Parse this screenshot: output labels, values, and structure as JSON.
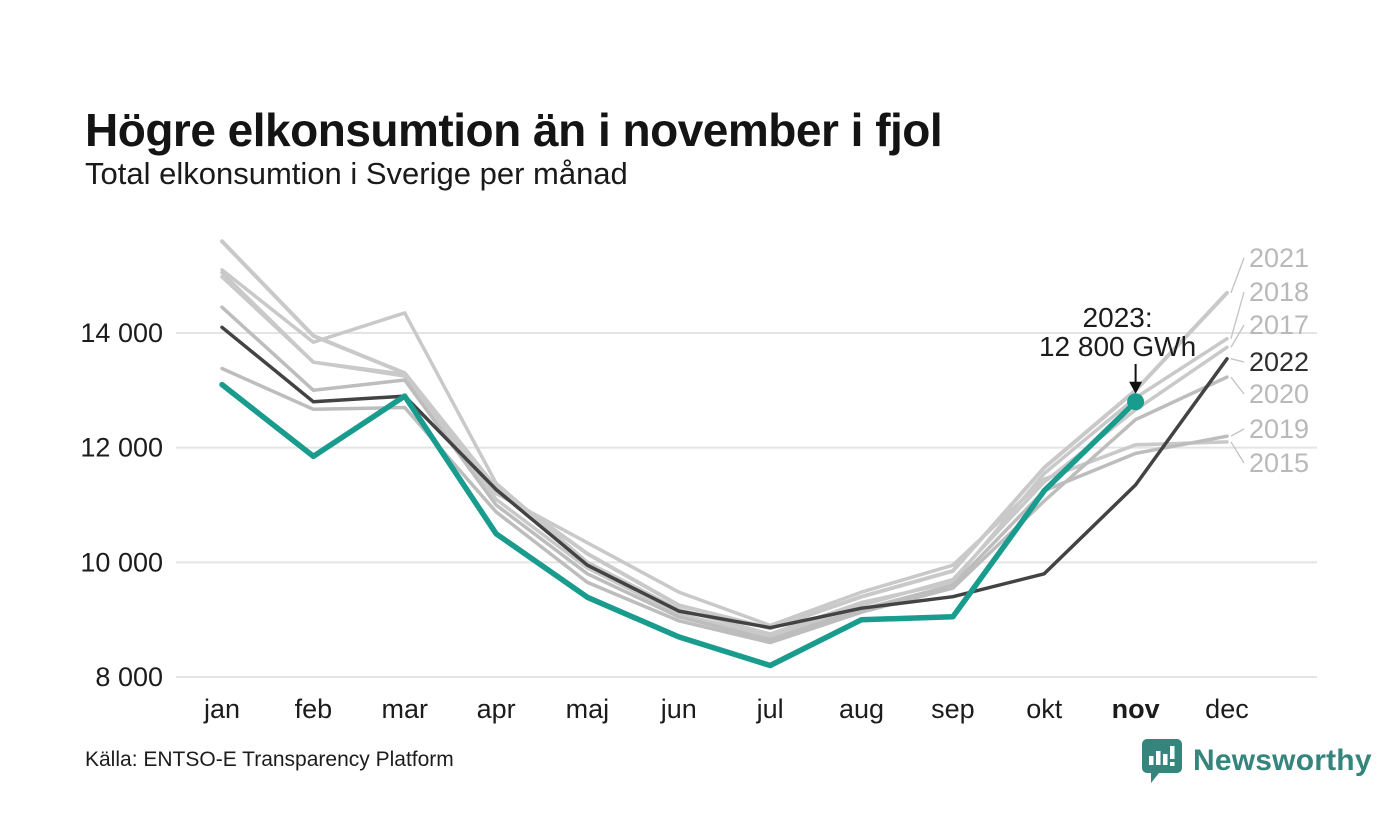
{
  "header": {
    "title": "Högre elkonsumtion än i november i fjol",
    "subtitle": "Total elkonsumtion i Sverige per månad"
  },
  "footer": {
    "source": "Källa: ENTSO-E Transparency Platform",
    "brand": "Newsworthy"
  },
  "colors": {
    "accent": "#199c8d",
    "dark_line": "#434343",
    "gray_line": "#c9c9c9",
    "gray_line_dark": "#b9b9b9",
    "grid": "#e4e4e4",
    "label_gray": "#b9b9b9",
    "label_dark": "#2f2f2f",
    "text": "#1c1c1c",
    "leader": "#c2c2c2",
    "brand": "#36857c"
  },
  "chart_data": {
    "type": "line",
    "title": "Högre elkonsumtion än i november i fjol",
    "subtitle": "Total elkonsumtion i Sverige per månad",
    "unit": "GWh",
    "categories": [
      "jan",
      "feb",
      "mar",
      "apr",
      "maj",
      "jun",
      "jul",
      "aug",
      "sep",
      "okt",
      "nov",
      "dec"
    ],
    "bold_category": "nov",
    "yticks": [
      8000,
      10000,
      12000,
      14000
    ],
    "ytick_labels": [
      "8 000",
      "10 000",
      "12 000",
      "14 000"
    ],
    "ylim": [
      8000,
      15800
    ],
    "grid": true,
    "legend_position": "right",
    "annotation": {
      "line1": "2023:",
      "line2": "12 800 GWh",
      "series": "2023",
      "month": "nov",
      "value": 12800
    },
    "series": [
      {
        "name": "2015",
        "color": "#c9c9c9",
        "label_color": "#b9b9b9",
        "width": 3.5,
        "values": [
          15050,
          13490,
          13250,
          11200,
          10340,
          9480,
          8900,
          9480,
          9950,
          11450,
          12050,
          12100
        ]
      },
      {
        "name": "2017",
        "color": "#c9c9c9",
        "label_color": "#b9b9b9",
        "width": 3.5,
        "values": [
          14980,
          13490,
          13280,
          11100,
          9900,
          9100,
          8700,
          9250,
          9700,
          11400,
          12660,
          13750
        ]
      },
      {
        "name": "2018",
        "color": "#c9c9c9",
        "label_color": "#b9b9b9",
        "width": 3.5,
        "values": [
          15100,
          13840,
          14350,
          11380,
          10000,
          9180,
          8750,
          9300,
          9650,
          11550,
          12870,
          13900
        ]
      },
      {
        "name": "2019",
        "color": "#bdbdbd",
        "label_color": "#b9b9b9",
        "width": 3.5,
        "values": [
          14450,
          13000,
          13180,
          11000,
          9800,
          9050,
          8650,
          9180,
          9600,
          11250,
          11900,
          12200
        ]
      },
      {
        "name": "2020",
        "color": "#bdbdbd",
        "label_color": "#b9b9b9",
        "width": 3.5,
        "values": [
          13380,
          12670,
          12700,
          10880,
          9650,
          8980,
          8600,
          9130,
          9550,
          11070,
          12490,
          13230
        ]
      },
      {
        "name": "2021",
        "color": "#c9c9c9",
        "label_color": "#b9b9b9",
        "width": 4,
        "values": [
          15600,
          13950,
          13300,
          11300,
          10150,
          9250,
          8850,
          9400,
          9850,
          11650,
          13000,
          14700
        ]
      },
      {
        "name": "2022",
        "color": "#434343",
        "label_color": "#2f2f2f",
        "width": 3.5,
        "values": [
          14100,
          12800,
          12900,
          11270,
          9950,
          9150,
          8860,
          9200,
          9400,
          9800,
          11350,
          13550
        ]
      },
      {
        "name": "2023",
        "color": "#199c8d",
        "label_color": "#199c8d",
        "width": 5.5,
        "end_dot": true,
        "values": [
          13100,
          11850,
          12900,
          10500,
          9390,
          8700,
          8200,
          9000,
          9050,
          11250,
          12800
        ]
      }
    ]
  }
}
